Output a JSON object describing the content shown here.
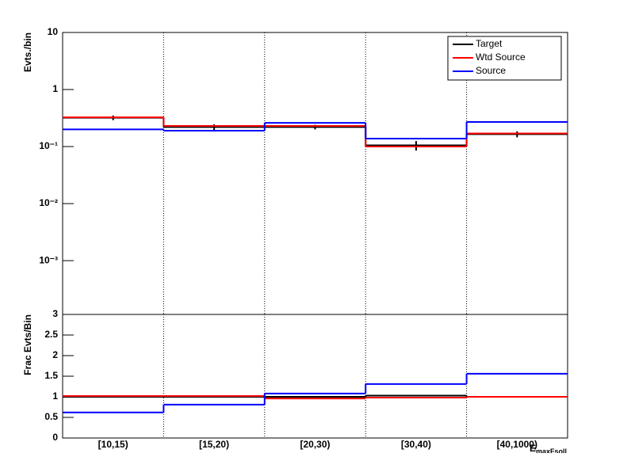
{
  "chart_data": [
    {
      "type": "step",
      "y_label": "Evts./bin",
      "log_y": true,
      "categories": [
        "[10,15)",
        "[15,20)",
        "[20,30)",
        "[30,40)",
        "[40,1000)"
      ],
      "ylim": [
        0.000114,
        10
      ],
      "yticks": [
        {
          "value": 10,
          "label": "10"
        },
        {
          "value": 1,
          "label": "1"
        },
        {
          "value": 0.1,
          "label": "10⁻¹"
        },
        {
          "value": 0.01,
          "label": "10⁻²"
        },
        {
          "value": 0.001,
          "label": "10⁻³"
        }
      ],
      "grid_x": true,
      "legend": "top-right",
      "series": [
        {
          "name": "Target",
          "color": "#000000",
          "values": [
            0.32,
            0.22,
            0.22,
            0.105,
            0.165
          ],
          "errors": [
            0.03,
            0.025,
            0.02,
            0.02,
            0.02
          ]
        },
        {
          "name": "Wtd Source",
          "color": "#ff0000",
          "values": [
            0.326,
            0.23,
            0.23,
            0.1,
            0.17
          ]
        },
        {
          "name": "Source",
          "color": "#0000ff",
          "values": [
            0.2,
            0.19,
            0.26,
            0.138,
            0.27
          ]
        }
      ]
    },
    {
      "type": "step",
      "y_label": "Frac Evts/Bin",
      "x_label": {
        "main": "E",
        "sub": "maxFsoll"
      },
      "categories": [
        "[10,15)",
        "[15,20)",
        "[20,30)",
        "[30,40)",
        "[40,1000)"
      ],
      "ylim": [
        0,
        3
      ],
      "yticks": [
        0,
        0.5,
        1,
        1.5,
        2,
        2.5,
        3
      ],
      "grid_x": true,
      "series": [
        {
          "name": "Target",
          "color": "#000000",
          "values": [
            1,
            1,
            1,
            1.03,
            1
          ]
        },
        {
          "name": "Wtd Source",
          "color": "#ff0000",
          "values": [
            1.02,
            1.02,
            0.96,
            0.98,
            1.0
          ]
        },
        {
          "name": "Source",
          "color": "#0000ff",
          "values": [
            0.62,
            0.81,
            1.08,
            1.31,
            1.56
          ]
        }
      ]
    }
  ]
}
